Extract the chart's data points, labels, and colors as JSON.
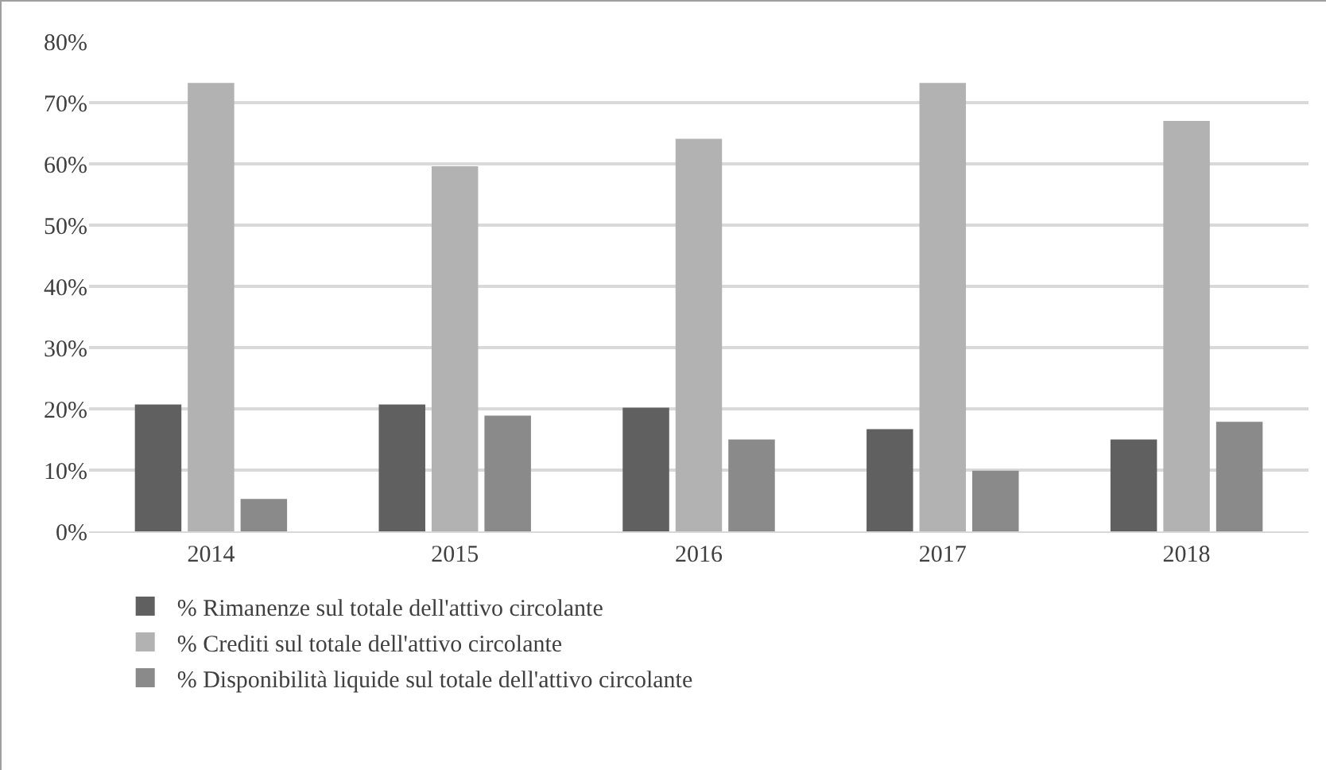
{
  "chart_data": {
    "type": "bar",
    "categories": [
      "2014",
      "2015",
      "2016",
      "2017",
      "2018"
    ],
    "series": [
      {
        "name": "% Rimanenze sul totale dell'attivo circolante",
        "color": "#606060",
        "values": [
          20.7,
          20.7,
          20.2,
          16.7,
          15.0
        ]
      },
      {
        "name": "% Crediti sul totale dell'attivo circolante",
        "color": "#b2b2b2",
        "values": [
          73.2,
          59.6,
          64.1,
          73.2,
          67.0
        ]
      },
      {
        "name": "% Disponibilità liquide sul totale dell'attivo circolante",
        "color": "#8a8a8a",
        "values": [
          5.3,
          18.9,
          15.0,
          9.9,
          17.9
        ]
      }
    ],
    "ylim": [
      0,
      80
    ],
    "yticks": [
      {
        "value": 0,
        "label": "0%"
      },
      {
        "value": 10,
        "label": "10%"
      },
      {
        "value": 20,
        "label": "20%"
      },
      {
        "value": 30,
        "label": "30%"
      },
      {
        "value": 40,
        "label": "40%"
      },
      {
        "value": 50,
        "label": "50%"
      },
      {
        "value": 60,
        "label": "60%"
      },
      {
        "value": 70,
        "label": "70%"
      },
      {
        "value": 80,
        "label": "80%"
      }
    ],
    "grid": "y",
    "legend": "bottom"
  }
}
